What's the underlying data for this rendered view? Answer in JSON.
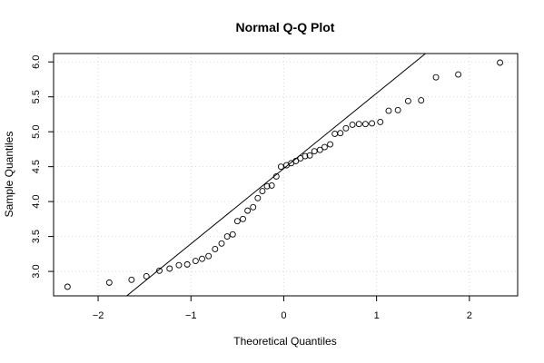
{
  "chart_data": {
    "type": "scatter",
    "title": "Normal Q-Q Plot",
    "xlabel": "Theoretical Quantiles",
    "ylabel": "Sample Quantiles",
    "xlim": [
      -2.48,
      2.52
    ],
    "ylim": [
      2.65,
      6.12
    ],
    "x_ticks": [
      -2,
      -1,
      0,
      1,
      2
    ],
    "x_tick_labels": [
      "−2",
      "−1",
      "0",
      "1",
      "2"
    ],
    "y_ticks": [
      3.0,
      3.5,
      4.0,
      4.5,
      5.0,
      5.5,
      6.0
    ],
    "y_tick_labels": [
      "3.0",
      "3.5",
      "4.0",
      "4.5",
      "5.0",
      "5.5",
      "6.0"
    ],
    "grid": true,
    "reference_line": {
      "x1": -2.48,
      "y1": 1.8,
      "x2": 2.52,
      "y2": 7.19
    },
    "points": [
      {
        "x": -2.33,
        "y": 2.78
      },
      {
        "x": -1.88,
        "y": 2.84
      },
      {
        "x": -1.64,
        "y": 2.88
      },
      {
        "x": -1.48,
        "y": 2.93
      },
      {
        "x": -1.34,
        "y": 3.01
      },
      {
        "x": -1.23,
        "y": 3.04
      },
      {
        "x": -1.13,
        "y": 3.09
      },
      {
        "x": -1.04,
        "y": 3.1
      },
      {
        "x": -0.95,
        "y": 3.15
      },
      {
        "x": -0.88,
        "y": 3.18
      },
      {
        "x": -0.81,
        "y": 3.22
      },
      {
        "x": -0.74,
        "y": 3.32
      },
      {
        "x": -0.67,
        "y": 3.4
      },
      {
        "x": -0.61,
        "y": 3.5
      },
      {
        "x": -0.55,
        "y": 3.53
      },
      {
        "x": -0.5,
        "y": 3.72
      },
      {
        "x": -0.44,
        "y": 3.75
      },
      {
        "x": -0.39,
        "y": 3.87
      },
      {
        "x": -0.33,
        "y": 3.92
      },
      {
        "x": -0.28,
        "y": 4.05
      },
      {
        "x": -0.23,
        "y": 4.15
      },
      {
        "x": -0.18,
        "y": 4.22
      },
      {
        "x": -0.13,
        "y": 4.23
      },
      {
        "x": -0.08,
        "y": 4.36
      },
      {
        "x": -0.03,
        "y": 4.5
      },
      {
        "x": 0.03,
        "y": 4.52
      },
      {
        "x": 0.08,
        "y": 4.55
      },
      {
        "x": 0.13,
        "y": 4.58
      },
      {
        "x": 0.18,
        "y": 4.62
      },
      {
        "x": 0.23,
        "y": 4.65
      },
      {
        "x": 0.28,
        "y": 4.66
      },
      {
        "x": 0.33,
        "y": 4.72
      },
      {
        "x": 0.39,
        "y": 4.74
      },
      {
        "x": 0.44,
        "y": 4.78
      },
      {
        "x": 0.5,
        "y": 4.82
      },
      {
        "x": 0.55,
        "y": 4.97
      },
      {
        "x": 0.61,
        "y": 4.98
      },
      {
        "x": 0.67,
        "y": 5.05
      },
      {
        "x": 0.74,
        "y": 5.1
      },
      {
        "x": 0.81,
        "y": 5.11
      },
      {
        "x": 0.88,
        "y": 5.11
      },
      {
        "x": 0.95,
        "y": 5.12
      },
      {
        "x": 1.04,
        "y": 5.14
      },
      {
        "x": 1.13,
        "y": 5.3
      },
      {
        "x": 1.23,
        "y": 5.31
      },
      {
        "x": 1.34,
        "y": 5.44
      },
      {
        "x": 1.48,
        "y": 5.45
      },
      {
        "x": 1.64,
        "y": 5.78
      },
      {
        "x": 1.88,
        "y": 5.82
      },
      {
        "x": 2.33,
        "y": 5.99
      }
    ]
  }
}
